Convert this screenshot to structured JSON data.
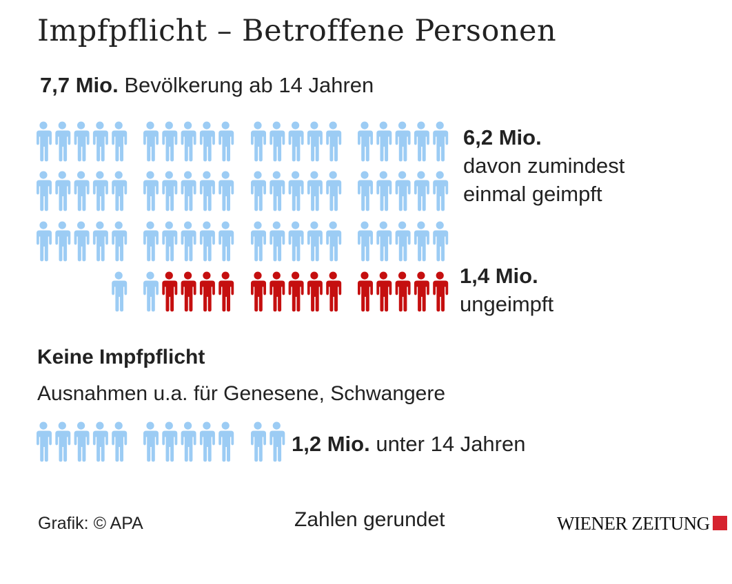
{
  "title": "Impfpflicht – Betroffene Personen",
  "total": {
    "value": "7,7 Mio.",
    "label": "Bevölkerung ab 14 Jahren"
  },
  "vaccinated": {
    "value": "6,2 Mio.",
    "line1": "davon zumindest",
    "line2": "einmal geimpft"
  },
  "unvaccinated": {
    "value": "1,4 Mio.",
    "label": "ungeimpft"
  },
  "exempt": {
    "heading": "Keine Impfpflicht",
    "subheading": "Ausnahmen u.a. für Genesene, Schwangere"
  },
  "under14": {
    "value": "1,2 Mio.",
    "label": "unter 14 Jahren"
  },
  "footer": {
    "source": "Grafik: © APA",
    "note": "Zahlen gerundet"
  },
  "logo": {
    "text": "WIENER ZEITUNG",
    "square_color": "#d6232f"
  },
  "colors": {
    "vaccinated": "#9cccf4",
    "unvaccinated": "#c50f0f",
    "under14": "#9cccf4"
  },
  "chart_data": {
    "type": "pictogram",
    "unit_per_icon": "0,1 Mio. Personen",
    "series": [
      {
        "name": "davon zumindest einmal geimpft",
        "icons": 62,
        "value_mio": 6.2
      },
      {
        "name": "ungeimpft",
        "icons": 14,
        "value_mio": 1.4
      },
      {
        "name": "unter 14 Jahren",
        "icons": 12,
        "value_mio": 1.2
      }
    ]
  }
}
